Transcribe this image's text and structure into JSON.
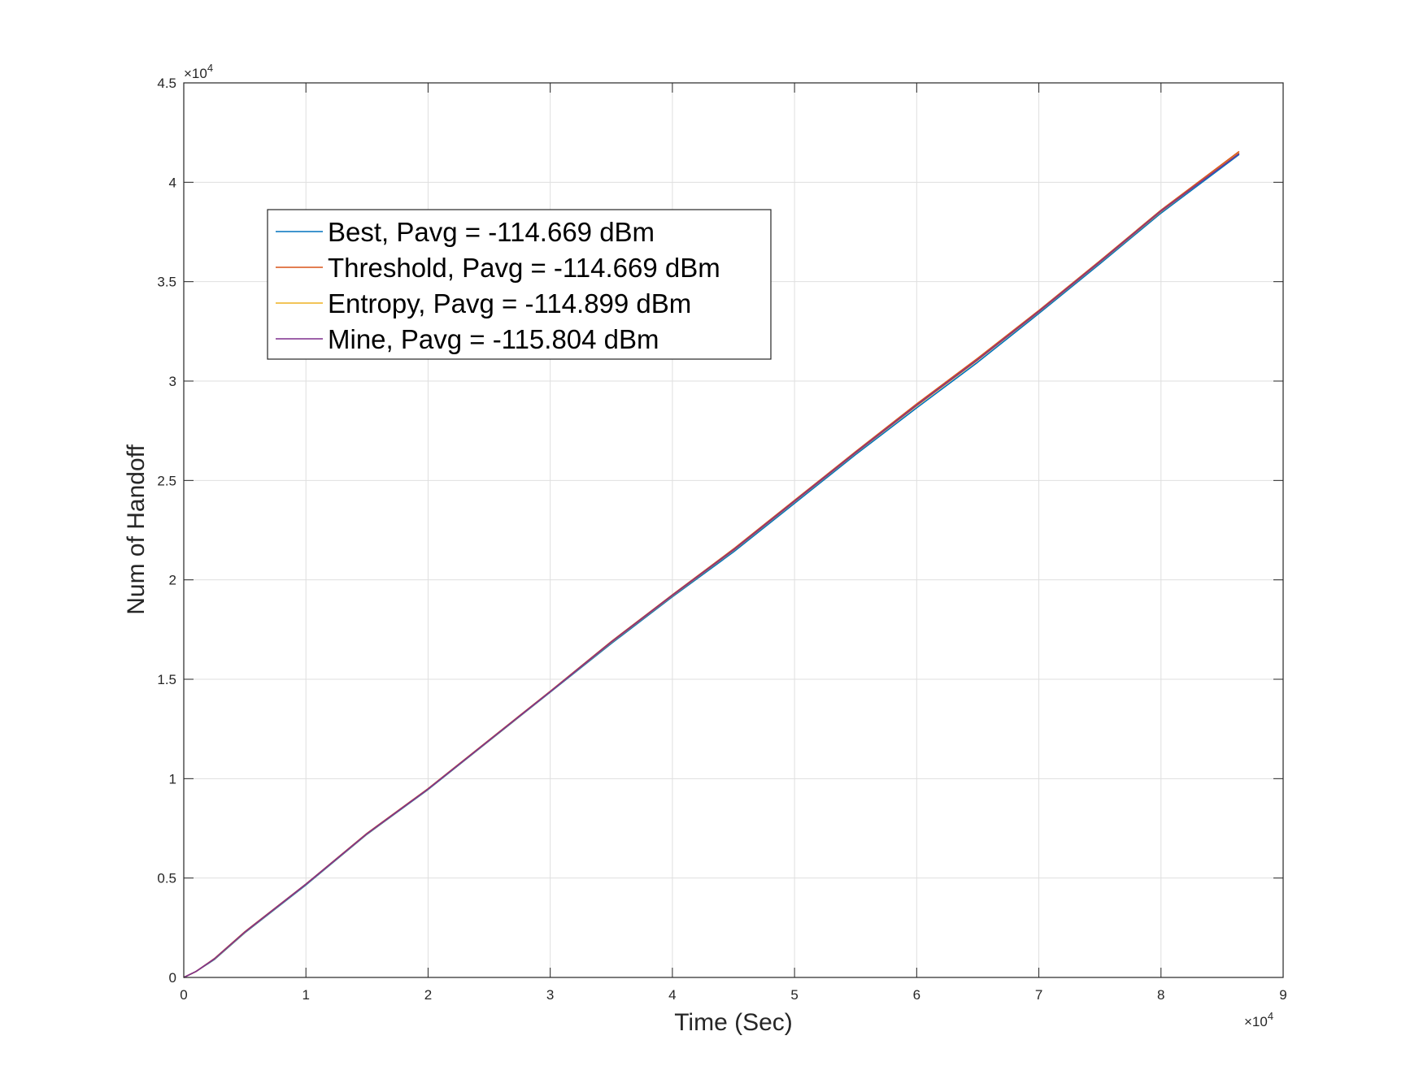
{
  "chart_data": {
    "type": "line",
    "title": "",
    "xlabel": "Time (Sec)",
    "ylabel": "Num of Handoff",
    "x_multiplier_label": "×10",
    "x_multiplier_exp": "4",
    "y_multiplier_label": "×10",
    "y_multiplier_exp": "4",
    "xlim": [
      0,
      90000
    ],
    "ylim": [
      0,
      45000
    ],
    "xticks": [
      0,
      10000,
      20000,
      30000,
      40000,
      50000,
      60000,
      70000,
      80000,
      90000
    ],
    "xtick_labels": [
      "0",
      "1",
      "2",
      "3",
      "4",
      "5",
      "6",
      "7",
      "8",
      "9"
    ],
    "yticks": [
      0,
      5000,
      10000,
      15000,
      20000,
      25000,
      30000,
      35000,
      40000,
      45000
    ],
    "ytick_labels": [
      "0",
      "0.5",
      "1",
      "1.5",
      "2",
      "2.5",
      "3",
      "3.5",
      "4",
      "4.5"
    ],
    "grid": true,
    "legend_position": "upper-left",
    "series": [
      {
        "name": "Best, Pavg = -114.669 dBm",
        "color": "#0072BD",
        "x": [
          0,
          1000,
          2500,
          5000,
          10000,
          15000,
          20000,
          25000,
          30000,
          35000,
          40000,
          45000,
          50000,
          55000,
          60000,
          65000,
          70000,
          75000,
          80000,
          86400
        ],
        "y": [
          0,
          300,
          900,
          2250,
          4650,
          7200,
          9450,
          11900,
          14350,
          16800,
          19150,
          21400,
          23850,
          26300,
          28650,
          30950,
          33400,
          35900,
          38450,
          41400
        ]
      },
      {
        "name": "Threshold, Pavg = -114.669 dBm",
        "color": "#D95319",
        "x": [
          0,
          1000,
          2500,
          5000,
          10000,
          15000,
          20000,
          25000,
          30000,
          35000,
          40000,
          45000,
          50000,
          55000,
          60000,
          65000,
          70000,
          75000,
          80000,
          86400
        ],
        "y": [
          0,
          300,
          950,
          2300,
          4700,
          7250,
          9500,
          11950,
          14400,
          16900,
          19250,
          21550,
          24000,
          26450,
          28850,
          31150,
          33550,
          36050,
          38600,
          41550
        ]
      },
      {
        "name": "Entropy, Pavg = -114.899 dBm",
        "color": "#EDB120",
        "x": [
          0,
          1000,
          2500,
          5000,
          10000,
          15000,
          20000,
          25000,
          30000,
          35000,
          40000,
          45000,
          50000,
          55000,
          60000,
          65000,
          70000,
          75000,
          80000,
          86400
        ],
        "y": [
          0,
          300,
          920,
          2270,
          4680,
          7220,
          9470,
          11920,
          14370,
          16850,
          19200,
          21480,
          23930,
          26380,
          28750,
          31050,
          33480,
          35980,
          38520,
          41480
        ]
      },
      {
        "name": "Mine, Pavg = -115.804 dBm",
        "color": "#7E2F8E",
        "x": [
          0,
          1000,
          2500,
          5000,
          10000,
          15000,
          20000,
          25000,
          30000,
          35000,
          40000,
          45000,
          50000,
          55000,
          60000,
          65000,
          70000,
          75000,
          80000,
          86400
        ],
        "y": [
          0,
          300,
          930,
          2280,
          4690,
          7230,
          9480,
          11930,
          14380,
          16870,
          19220,
          21500,
          23950,
          26400,
          28780,
          31080,
          33500,
          36000,
          38550,
          41450
        ]
      }
    ]
  }
}
